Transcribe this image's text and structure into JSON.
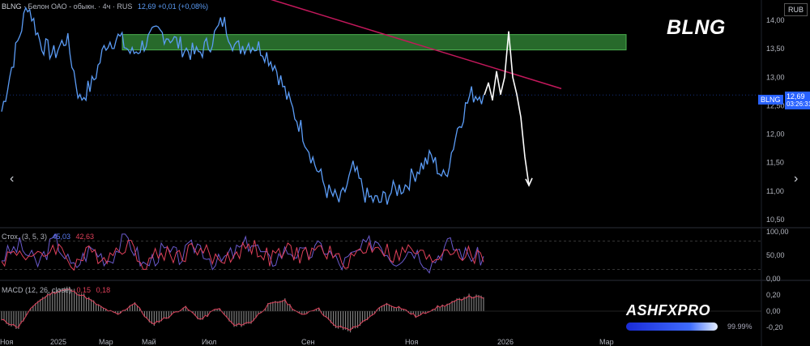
{
  "header": {
    "ticker": "BLNG",
    "name": "Белон ОАО - обыкн.",
    "timeframe": "4ч",
    "exchange": "RUS",
    "quote": "12,69 +0,01 (+0,08%)"
  },
  "title": "BLNG",
  "currency": "RUB",
  "last_price": {
    "label": "BLNG",
    "value": "12,69",
    "countdown": "03:26:31"
  },
  "stoch": {
    "label": "Стох. (3, 5, 3)",
    "k": "45,03",
    "d": "42,63"
  },
  "macd": {
    "label": "MACD (12, 26, close)",
    "v1": "0,15",
    "v2": "0,18"
  },
  "brand": {
    "name": "ASHFXPRO",
    "progress_text": "99.99%",
    "progress": 0.9999
  },
  "colors": {
    "price": "#5b9cf6",
    "trend": "#c2185b",
    "zone": "#2e7d32",
    "forecast": "#ffffff",
    "stoch_k": "#6a5acd",
    "stoch_d": "#e0405a",
    "macd_line": "#e0405a",
    "macd_hist": "#9e9e9e"
  },
  "chart_data": [
    {
      "type": "line",
      "pane": "price",
      "y_ticks": [
        "14,00",
        "13,50",
        "13,00",
        "12,50",
        "12,00",
        "11,50",
        "11,00",
        "10,50"
      ],
      "x_ticks": [
        "Ноя",
        "2025",
        "Мар",
        "Май",
        "Июл",
        "Сен",
        "Ноя",
        "2026",
        "Мар"
      ],
      "ylim": [
        10.4,
        14.3
      ],
      "series": [
        {
          "values": [
            12.4,
            13.4,
            14.3,
            13.6,
            13.4,
            13.7,
            12.6,
            12.9,
            13.6,
            13.7,
            13.4,
            13.6,
            13.8,
            13.7,
            13.5,
            13.4,
            13.6,
            14.0,
            13.5,
            13.6,
            13.5,
            13.2,
            12.6,
            12.1,
            11.5,
            11.0,
            10.8,
            11.4,
            10.9,
            10.8,
            11.0,
            11.1,
            11.4,
            11.6,
            11.2,
            12.1,
            12.7,
            12.69
          ]
        }
      ],
      "trendline": {
        "from": [
          "Апр 2025",
          14.7
        ],
        "to": [
          "Дек 2025",
          12.8
        ]
      },
      "zone": {
        "from": 13.48,
        "to": 13.75
      },
      "forecast": [
        12.69,
        12.9,
        12.6,
        13.1,
        12.7,
        13.0,
        13.8,
        13.0,
        12.7,
        12.3,
        11.6,
        11.1
      ]
    },
    {
      "type": "line",
      "pane": "stochastic",
      "y_ticks": [
        "100,00",
        "50,00",
        "0,00"
      ],
      "ylim": [
        0,
        100
      ],
      "series": [
        {
          "name": "K",
          "values": [
            45,
            70,
            30,
            85,
            20,
            65,
            40,
            90,
            25,
            60,
            45,
            75,
            30,
            55,
            80,
            35,
            62,
            48,
            70,
            28,
            58,
            85,
            40,
            66,
            30,
            75,
            52,
            45
          ]
        },
        {
          "name": "D",
          "values": [
            42,
            60,
            40,
            72,
            32,
            55,
            48,
            78,
            35,
            55,
            50,
            68,
            38,
            52,
            72,
            42,
            58,
            50,
            64,
            34,
            55,
            75,
            46,
            62,
            36,
            68,
            50,
            43
          ]
        }
      ]
    },
    {
      "type": "bar",
      "pane": "macd",
      "y_ticks": [
        "0,20",
        "0,00",
        "-0,20"
      ],
      "ylim": [
        -0.28,
        0.35
      ],
      "series": [
        {
          "name": "hist",
          "values": [
            -0.12,
            -0.22,
            0.1,
            0.25,
            0.3,
            0.2,
            0.05,
            -0.05,
            0.12,
            -0.18,
            -0.08,
            0.06,
            -0.12,
            0.05,
            -0.2,
            -0.15,
            0.08,
            0.15,
            -0.06,
            0.05,
            -0.2,
            -0.25,
            -0.12,
            0.1,
            0.05,
            -0.08,
            0.04,
            0.1,
            0.2,
            0.18
          ]
        }
      ]
    }
  ]
}
